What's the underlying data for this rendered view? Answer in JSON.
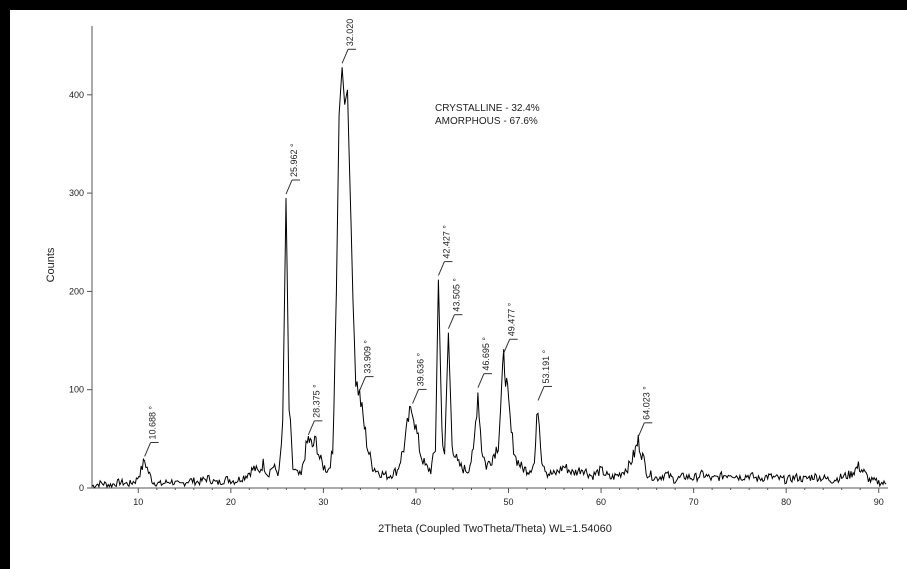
{
  "chart_data": {
    "type": "line",
    "title": "",
    "xlabel": "2Theta (Coupled TwoTheta/Theta) WL=1.54060",
    "ylabel": "Counts",
    "xlim": [
      5,
      91
    ],
    "ylim": [
      0,
      470
    ],
    "x_ticks": [
      10,
      20,
      30,
      40,
      50,
      60,
      70,
      80,
      90
    ],
    "y_ticks": [
      0,
      100,
      200,
      300,
      400
    ],
    "grid": false,
    "line_color": "#000000",
    "annotations": [
      "CRYSTALLINE - 32.4%",
      "AMORPHOUS - 67.6%"
    ],
    "peaks": [
      {
        "x": 10.688,
        "y": 28,
        "label": "10.688 °"
      },
      {
        "x": 25.962,
        "y": 295,
        "label": "25.962 °"
      },
      {
        "x": 28.375,
        "y": 50,
        "label": "28.375 °"
      },
      {
        "x": 32.02,
        "y": 428,
        "label": "32.020"
      },
      {
        "x": 33.909,
        "y": 95,
        "label": "33.909 °"
      },
      {
        "x": 39.636,
        "y": 82,
        "label": "39.636 °"
      },
      {
        "x": 42.427,
        "y": 212,
        "label": "42.427 °"
      },
      {
        "x": 43.505,
        "y": 158,
        "label": "43.505 °"
      },
      {
        "x": 46.695,
        "y": 98,
        "label": "46.695 °"
      },
      {
        "x": 49.477,
        "y": 133,
        "label": "49.477 °"
      },
      {
        "x": 53.191,
        "y": 85,
        "label": "53.191 °"
      },
      {
        "x": 64.023,
        "y": 48,
        "label": "64.023 °"
      }
    ],
    "series": [
      {
        "points": [
          [
            5,
            2
          ],
          [
            6,
            5
          ],
          [
            7,
            3
          ],
          [
            8,
            6
          ],
          [
            9,
            4
          ],
          [
            9.8,
            8
          ],
          [
            10.3,
            18
          ],
          [
            10.688,
            28
          ],
          [
            11.1,
            16
          ],
          [
            11.6,
            6
          ],
          [
            12.5,
            4
          ],
          [
            13.5,
            7
          ],
          [
            14.5,
            3
          ],
          [
            15.5,
            8
          ],
          [
            16.5,
            6
          ],
          [
            17.5,
            10
          ],
          [
            18.5,
            5
          ],
          [
            19.5,
            9
          ],
          [
            20.5,
            7
          ],
          [
            21.5,
            12
          ],
          [
            22.5,
            20
          ],
          [
            23,
            16
          ],
          [
            23.5,
            25
          ],
          [
            24,
            14
          ],
          [
            24.5,
            22
          ],
          [
            25.2,
            15
          ],
          [
            25.6,
            60
          ],
          [
            25.962,
            295
          ],
          [
            26.3,
            80
          ],
          [
            26.7,
            20
          ],
          [
            27.2,
            14
          ],
          [
            27.6,
            12
          ],
          [
            28,
            35
          ],
          [
            28.375,
            50
          ],
          [
            28.8,
            42
          ],
          [
            29.2,
            48
          ],
          [
            29.6,
            30
          ],
          [
            30,
            22
          ],
          [
            30.5,
            18
          ],
          [
            31,
            35
          ],
          [
            31.4,
            200
          ],
          [
            31.7,
            380
          ],
          [
            32.02,
            428
          ],
          [
            32.3,
            390
          ],
          [
            32.6,
            405
          ],
          [
            32.9,
            300
          ],
          [
            33.2,
            190
          ],
          [
            33.5,
            110
          ],
          [
            33.909,
            95
          ],
          [
            34.3,
            70
          ],
          [
            34.8,
            40
          ],
          [
            35.3,
            22
          ],
          [
            36,
            16
          ],
          [
            37,
            12
          ],
          [
            38,
            18
          ],
          [
            38.8,
            45
          ],
          [
            39.2,
            70
          ],
          [
            39.636,
            82
          ],
          [
            40,
            60
          ],
          [
            40.5,
            35
          ],
          [
            41,
            22
          ],
          [
            41.6,
            18
          ],
          [
            42.1,
            40
          ],
          [
            42.427,
            212
          ],
          [
            42.8,
            60
          ],
          [
            43.1,
            30
          ],
          [
            43.505,
            158
          ],
          [
            43.9,
            45
          ],
          [
            44.5,
            25
          ],
          [
            45,
            20
          ],
          [
            45.6,
            18
          ],
          [
            46.2,
            35
          ],
          [
            46.695,
            98
          ],
          [
            47.1,
            40
          ],
          [
            47.6,
            22
          ],
          [
            48.2,
            30
          ],
          [
            48.9,
            45
          ],
          [
            49.477,
            133
          ],
          [
            49.9,
            95
          ],
          [
            50.3,
            55
          ],
          [
            50.8,
            30
          ],
          [
            51.5,
            20
          ],
          [
            52.2,
            18
          ],
          [
            52.8,
            25
          ],
          [
            53.191,
            85
          ],
          [
            53.6,
            30
          ],
          [
            54.2,
            15
          ],
          [
            55,
            14
          ],
          [
            56,
            22
          ],
          [
            57,
            15
          ],
          [
            58,
            20
          ],
          [
            59,
            12
          ],
          [
            60,
            18
          ],
          [
            61,
            10
          ],
          [
            62,
            14
          ],
          [
            63,
            22
          ],
          [
            63.6,
            35
          ],
          [
            64.023,
            48
          ],
          [
            64.5,
            32
          ],
          [
            65,
            15
          ],
          [
            66,
            10
          ],
          [
            67,
            14
          ],
          [
            68,
            8
          ],
          [
            69,
            12
          ],
          [
            70,
            10
          ],
          [
            71,
            14
          ],
          [
            72,
            9
          ],
          [
            73,
            12
          ],
          [
            74,
            15
          ],
          [
            75,
            11
          ],
          [
            76,
            13
          ],
          [
            77,
            9
          ],
          [
            78,
            12
          ],
          [
            79,
            10
          ],
          [
            80,
            8
          ],
          [
            81,
            11
          ],
          [
            82,
            9
          ],
          [
            83,
            12
          ],
          [
            84,
            10
          ],
          [
            85,
            8
          ],
          [
            86,
            11
          ],
          [
            87,
            14
          ],
          [
            87.8,
            22
          ],
          [
            88.4,
            16
          ],
          [
            89,
            8
          ],
          [
            90,
            6
          ],
          [
            90.8,
            4
          ]
        ]
      }
    ]
  }
}
